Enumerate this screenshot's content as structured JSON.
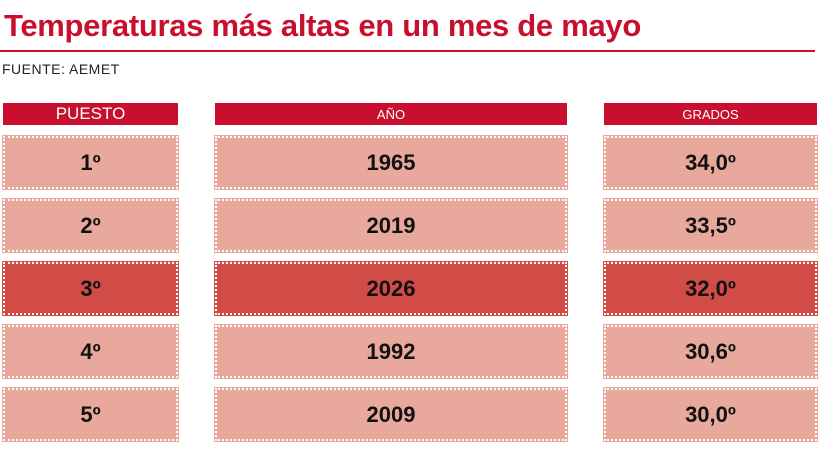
{
  "header": {
    "title": "Temperaturas más altas en un mes de mayo",
    "source": "FUENTE: AEMET"
  },
  "table": {
    "columns": [
      "PUESTO",
      "AÑO",
      "GRADOS"
    ],
    "rows": [
      [
        "1º",
        "1965",
        "34,0º"
      ],
      [
        "2º",
        "2019",
        "33,5º"
      ],
      [
        "3º",
        "2026",
        "32,0º"
      ],
      [
        "4º",
        "1992",
        "30,6º"
      ],
      [
        "5º",
        "2009",
        "30,0º"
      ]
    ]
  }
}
